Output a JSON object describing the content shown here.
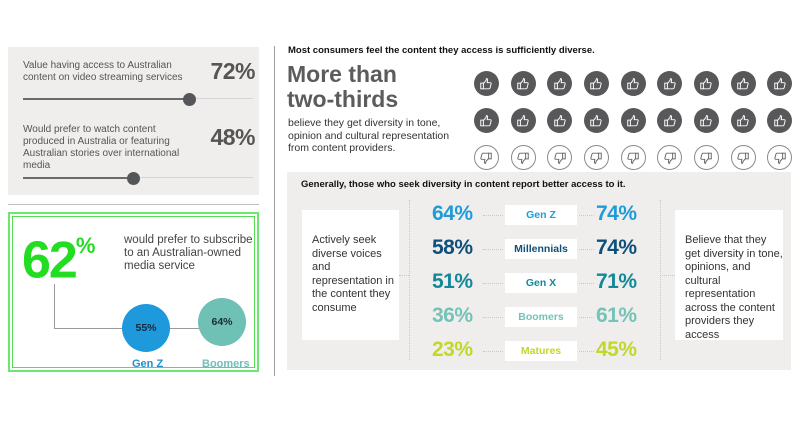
{
  "left_panel": {
    "stats": [
      {
        "label": "Value having access to Australian content on video streaming services",
        "value": "72%",
        "fraction": 0.72
      },
      {
        "label": "Would prefer to watch content produced in Australia or featuring Australian stories over international media",
        "value": "48%",
        "fraction": 0.48
      }
    ]
  },
  "green_box": {
    "big_value": "62",
    "big_unit": "%",
    "description": "would prefer to subscribe to an Australian-owned media service",
    "breakdown": [
      {
        "label": "Gen Z",
        "value": "55%",
        "color": "#1d99dc"
      },
      {
        "label": "Boomers",
        "value": "64%",
        "color": "#6fc0b5"
      }
    ],
    "accent_color": "#22dd22"
  },
  "diversity_top": {
    "heading": "Most consumers feel the content they access is sufficiently diverse.",
    "headline": "More than two-thirds",
    "headline_line1": "More than",
    "headline_line2": "two-thirds",
    "description": "believe they get diversity in tone, opinion and cultural representation from content providers.",
    "icons": {
      "rows": [
        {
          "type": "thumbs-up",
          "count": 9
        },
        {
          "type": "thumbs-up",
          "count": 9
        },
        {
          "type": "thumbs-down",
          "count": 9
        }
      ]
    }
  },
  "diversity_panel": {
    "heading": "Generally, those who seek diversity in content report better access to it.",
    "left_text": "Actively seek diverse voices and representation in the content they consume",
    "right_text": "Believe that they get diversity in tone, opinions, and cultural representation across the content providers they access",
    "generations": [
      {
        "name": "Gen Z",
        "seek": "64%",
        "get": "74%",
        "color": "#1f9bd7"
      },
      {
        "name": "Millennials",
        "seek": "58%",
        "get": "74%",
        "color": "#0e4f7c"
      },
      {
        "name": "Gen X",
        "seek": "51%",
        "get": "71%",
        "color": "#13889b"
      },
      {
        "name": "Boomers",
        "seek": "36%",
        "get": "61%",
        "color": "#74c3b8"
      },
      {
        "name": "Matures",
        "seek": "23%",
        "get": "45%",
        "color": "#c3d62a"
      }
    ]
  }
}
